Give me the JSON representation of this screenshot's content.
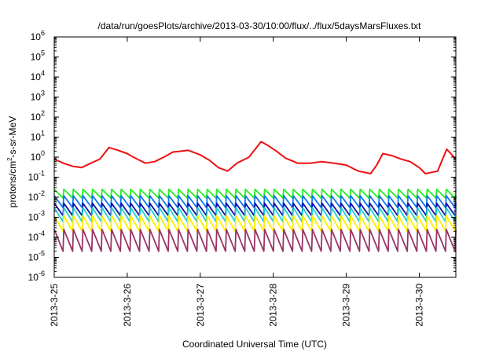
{
  "chart_data": {
    "type": "line",
    "title": "/data/run/goesPlots/archive/2013-03-30/10:00/flux/../flux/5daysMarsFluxes.txt",
    "xlabel": "Coordinated Universal Time (UTC)",
    "ylabel": {
      "base": "protons/cm",
      "sup": "2",
      "rest": "-s-sr-MeV"
    },
    "yscale": "log",
    "ylim_exp": [
      -6,
      6
    ],
    "ytick_base": "10",
    "ytick_exponents": [
      "-6",
      "-5",
      "-4",
      "-3",
      "-2",
      "-1",
      "0",
      "1",
      "2",
      "3",
      "4",
      "5",
      "6"
    ],
    "x_unit": "days",
    "xlim": [
      "2013-03-25",
      "2013-03-30 12:00"
    ],
    "xticks": [
      "2013-3-25",
      "2013-3-26",
      "2013-3-27",
      "2013-3-28",
      "2013-3-29",
      "2013-3-30"
    ],
    "grid": false,
    "legend": "none",
    "series": [
      {
        "color": "#ee1111",
        "x": [
          "2013-03-25 00:00",
          "2013-03-25 03:00",
          "2013-03-25 06:00",
          "2013-03-25 09:00",
          "2013-03-25 12:00",
          "2013-03-25 15:00",
          "2013-03-25 18:00",
          "2013-03-25 21:00",
          "2013-03-26 00:00",
          "2013-03-26 02:00",
          "2013-03-26 04:00",
          "2013-03-26 06:00",
          "2013-03-26 09:00",
          "2013-03-26 12:00",
          "2013-03-26 15:00",
          "2013-03-26 18:00",
          "2013-03-26 20:00",
          "2013-03-26 22:00",
          "2013-03-27 00:00",
          "2013-03-27 03:00",
          "2013-03-27 06:00",
          "2013-03-27 09:00",
          "2013-03-27 12:00",
          "2013-03-27 16:00",
          "2013-03-27 20:00",
          "2013-03-27 22:00",
          "2013-03-28 01:00",
          "2013-03-28 04:00",
          "2013-03-28 08:00",
          "2013-03-28 12:00",
          "2013-03-28 16:00",
          "2013-03-28 20:00",
          "2013-03-29 00:00",
          "2013-03-29 04:00",
          "2013-03-29 08:00",
          "2013-03-29 10:00",
          "2013-03-29 12:00",
          "2013-03-29 15:00",
          "2013-03-29 18:00",
          "2013-03-29 21:00",
          "2013-03-30 00:00",
          "2013-03-30 02:00",
          "2013-03-30 06:00",
          "2013-03-30 09:00",
          "2013-03-30 12:00"
        ],
        "y": [
          0.8,
          0.5,
          0.35,
          0.3,
          0.5,
          0.8,
          3.0,
          2.2,
          1.5,
          1.0,
          0.7,
          0.5,
          0.6,
          1.0,
          1.8,
          2.0,
          2.2,
          1.7,
          1.3,
          0.7,
          0.3,
          0.2,
          0.5,
          1.0,
          6.0,
          4.0,
          2.0,
          0.9,
          0.5,
          0.5,
          0.6,
          0.5,
          0.4,
          0.2,
          0.15,
          0.4,
          1.5,
          1.2,
          0.8,
          0.6,
          0.3,
          0.15,
          0.2,
          2.5,
          0.8
        ]
      },
      {
        "color": "#22ee22",
        "x_start": "2013-03-25 00:00",
        "x_end": "2013-03-30 12:00",
        "cycles": 42,
        "y_high": 0.025,
        "y_low": 0.009
      },
      {
        "color": "#1177ee",
        "x_start": "2013-03-25 00:00",
        "x_end": "2013-03-30 12:00",
        "cycles": 42,
        "y_high": 0.012,
        "y_low": 0.003
      },
      {
        "color": "#1111aa",
        "x_start": "2013-03-25 00:00",
        "x_end": "2013-03-30 12:00",
        "cycles": 42,
        "y_high": 0.005,
        "y_low": 0.0012
      },
      {
        "color": "#22cccc",
        "x_start": "2013-03-25 00:00",
        "x_end": "2013-03-30 12:00",
        "cycles": 42,
        "y_high": 0.003,
        "y_low": 0.0006
      },
      {
        "color": "#ffee00",
        "x_start": "2013-03-25 00:00",
        "x_end": "2013-03-30 12:00",
        "cycles": 42,
        "y_high": 0.0012,
        "y_low": 0.0002
      },
      {
        "color": "#993366",
        "x_start": "2013-03-25 00:00",
        "x_end": "2013-03-30 12:00",
        "cycles": 42,
        "y_high": 0.00025,
        "y_low": 2e-05
      }
    ]
  }
}
